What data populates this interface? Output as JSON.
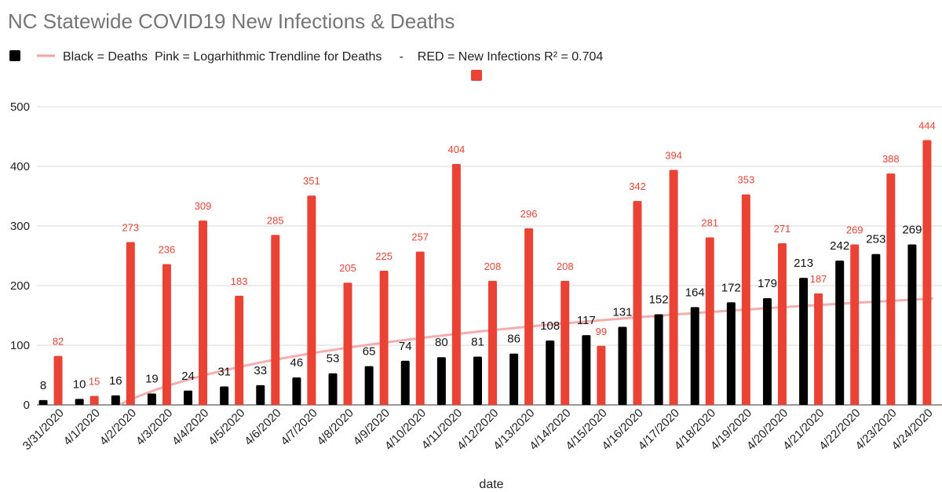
{
  "chart_data": {
    "type": "bar",
    "title": "NC Statewide COVID19 New Infections & Deaths",
    "legend": {
      "text": "Black = Deaths  Pink = Logarhithmic Trendline for Deaths     -    RED = New Infections R² = 0.704",
      "placement": "top-left"
    },
    "xlabel": "date",
    "ylabel": "",
    "ylim": [
      0,
      500
    ],
    "yticks": [
      0,
      100,
      200,
      300,
      400,
      500
    ],
    "grid": true,
    "categories": [
      "3/31/2020",
      "4/1/2020",
      "4/2/2020",
      "4/3/2020",
      "4/4/2020",
      "4/5/2020",
      "4/6/2020",
      "4/7/2020",
      "4/8/2020",
      "4/9/2020",
      "4/10/2020",
      "4/11/2020",
      "4/12/2020",
      "4/13/2020",
      "4/14/2020",
      "4/15/2020",
      "4/16/2020",
      "4/17/2020",
      "4/18/2020",
      "4/19/2020",
      "4/20/2020",
      "4/21/2020",
      "4/22/2020",
      "4/23/2020",
      "4/24/2020"
    ],
    "series": [
      {
        "name": "Deaths",
        "color": "#000000",
        "values": [
          8,
          10,
          16,
          19,
          24,
          31,
          33,
          46,
          53,
          65,
          74,
          80,
          81,
          86,
          108,
          117,
          131,
          152,
          164,
          172,
          179,
          213,
          242,
          253,
          269
        ]
      },
      {
        "name": "New Infections",
        "color": "#ea4335",
        "values": [
          82,
          15,
          273,
          236,
          309,
          183,
          285,
          351,
          205,
          225,
          257,
          404,
          208,
          296,
          208,
          99,
          342,
          394,
          281,
          353,
          271,
          187,
          269,
          388,
          444
        ]
      }
    ],
    "trendline": {
      "name": "Logarithmic Trendline for Deaths",
      "series": "Deaths",
      "type": "logarithmic",
      "color": "#f4a3a3"
    }
  }
}
